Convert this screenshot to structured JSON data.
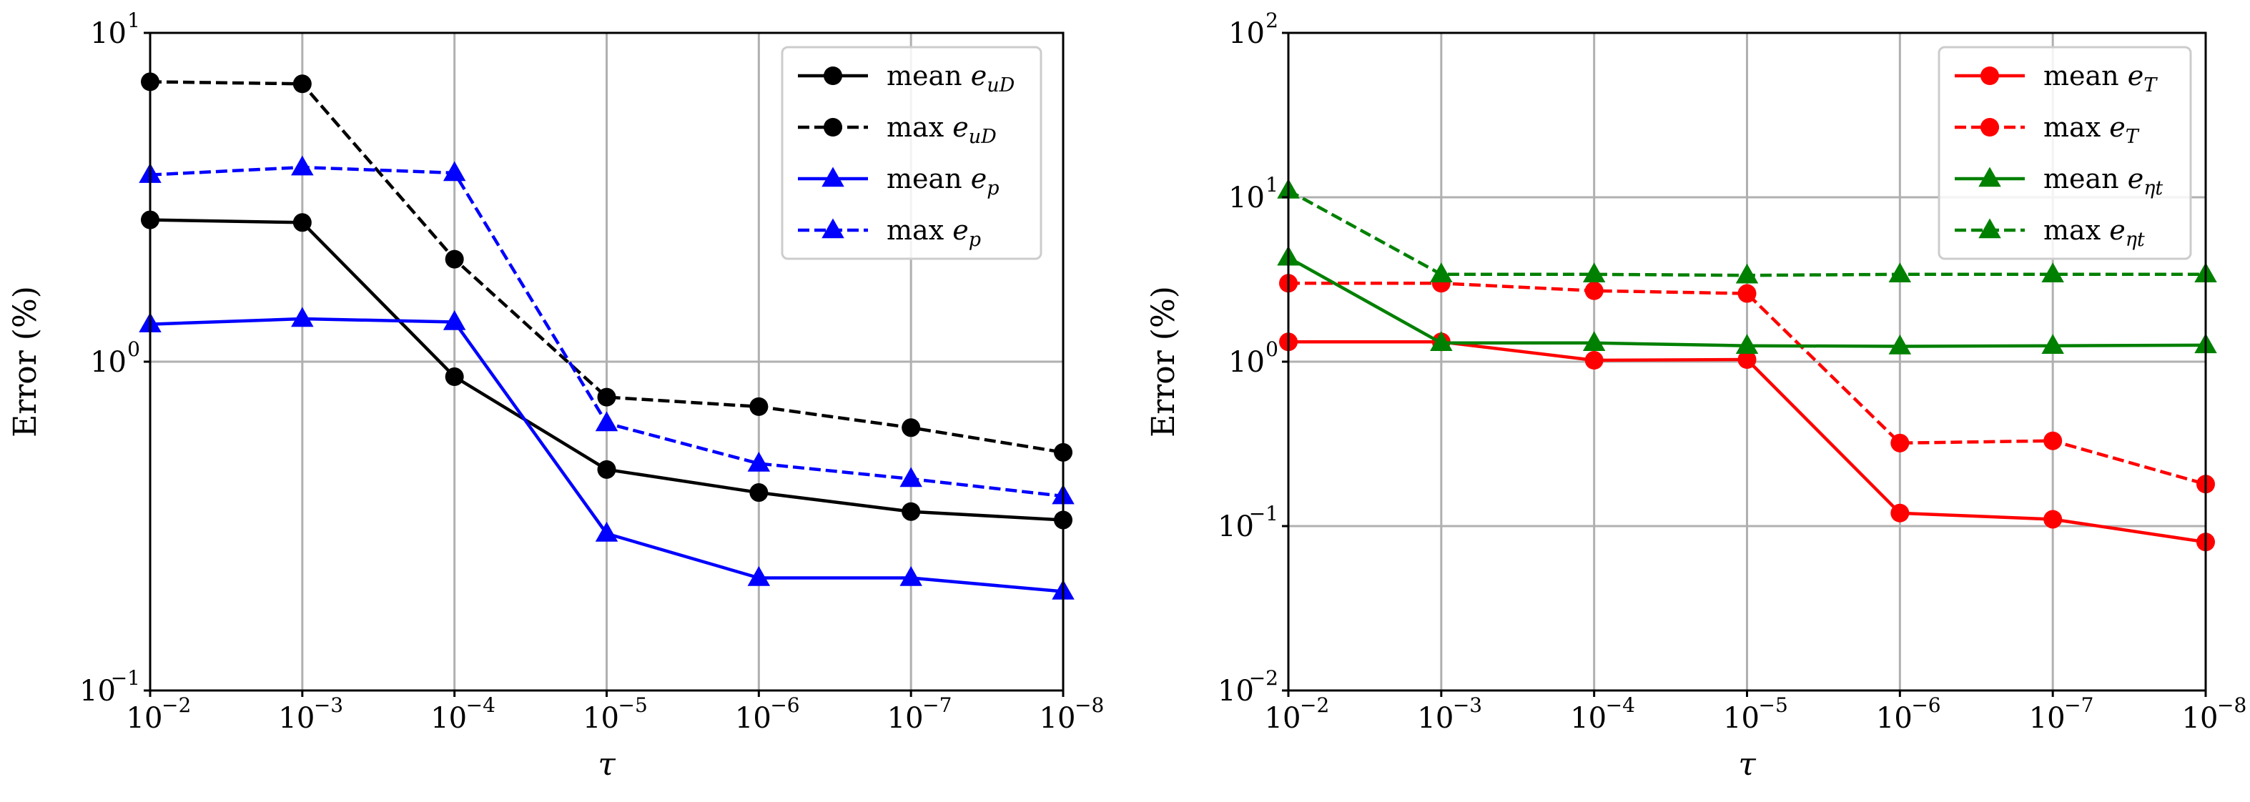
{
  "chart_data": [
    {
      "type": "line",
      "x": [
        0.01,
        0.001,
        0.0001,
        1e-05,
        1e-06,
        1e-07,
        1e-08
      ],
      "x_tick_labels": [
        "10",
        "10",
        "10",
        "10",
        "10",
        "10",
        "10"
      ],
      "x_tick_exponents": [
        "−2",
        "−3",
        "−4",
        "−5",
        "−6",
        "−7",
        "−8"
      ],
      "xlabel": "τ",
      "ylabel": "Error (%)",
      "ylim": [
        0.1,
        10
      ],
      "y_ticks": [
        0.1,
        1,
        10
      ],
      "y_tick_labels": [
        "10",
        "10",
        "10"
      ],
      "y_tick_exponents": [
        "−1",
        "0",
        "1"
      ],
      "xscale": "log",
      "yscale": "log",
      "grid": true,
      "legend_position": "top-right",
      "series": [
        {
          "name": "mean e_uD",
          "label_main": "mean ",
          "label_var": "e",
          "label_sub": "uD",
          "color": "#000000",
          "dash": "solid",
          "marker": "circle",
          "values": [
            2.7,
            2.65,
            0.9,
            0.47,
            0.4,
            0.35,
            0.33
          ]
        },
        {
          "name": "max e_uD",
          "label_main": "max ",
          "label_var": "e",
          "label_sub": "uD",
          "color": "#000000",
          "dash": "dashed",
          "marker": "circle",
          "values": [
            7.1,
            7.0,
            2.05,
            0.78,
            0.73,
            0.63,
            0.53
          ]
        },
        {
          "name": "mean e_p",
          "label_main": "mean ",
          "label_var": "e",
          "label_sub": "p",
          "color": "#0000ff",
          "dash": "solid",
          "marker": "triangle",
          "values": [
            1.3,
            1.35,
            1.32,
            0.3,
            0.22,
            0.22,
            0.2
          ]
        },
        {
          "name": "max e_p",
          "label_main": "max ",
          "label_var": "e",
          "label_sub": "p",
          "color": "#0000ff",
          "dash": "dashed",
          "marker": "triangle",
          "values": [
            3.7,
            3.9,
            3.75,
            0.65,
            0.49,
            0.44,
            0.39
          ]
        }
      ]
    },
    {
      "type": "line",
      "x": [
        0.01,
        0.001,
        0.0001,
        1e-05,
        1e-06,
        1e-07,
        1e-08
      ],
      "x_tick_labels": [
        "10",
        "10",
        "10",
        "10",
        "10",
        "10",
        "10"
      ],
      "x_tick_exponents": [
        "−2",
        "−3",
        "−4",
        "−5",
        "−6",
        "−7",
        "−8"
      ],
      "xlabel": "τ",
      "ylabel": "Error (%)",
      "ylim": [
        0.01,
        100
      ],
      "y_ticks": [
        0.01,
        0.1,
        1,
        10,
        100
      ],
      "y_tick_labels": [
        "10",
        "10",
        "10",
        "10",
        "10"
      ],
      "y_tick_exponents": [
        "−2",
        "−1",
        "0",
        "1",
        "2"
      ],
      "xscale": "log",
      "yscale": "log",
      "grid": true,
      "legend_position": "top-right",
      "series": [
        {
          "name": "mean e_T",
          "label_main": "mean ",
          "label_var": "e",
          "label_sub": "T",
          "color": "#ff0000",
          "dash": "solid",
          "marker": "circle",
          "values": [
            1.32,
            1.32,
            1.02,
            1.03,
            0.12,
            0.11,
            0.08
          ]
        },
        {
          "name": "max e_T",
          "label_main": "max ",
          "label_var": "e",
          "label_sub": "T",
          "color": "#ff0000",
          "dash": "dashed",
          "marker": "circle",
          "values": [
            3.0,
            3.0,
            2.7,
            2.6,
            0.32,
            0.33,
            0.18
          ]
        },
        {
          "name": "mean e_ηt",
          "label_main": "mean ",
          "label_var": "e",
          "label_sub": "ηt",
          "color": "#008000",
          "dash": "solid",
          "marker": "triangle",
          "values": [
            4.3,
            1.3,
            1.3,
            1.25,
            1.24,
            1.25,
            1.26
          ]
        },
        {
          "name": "max e_ηt",
          "label_main": "max ",
          "label_var": "e",
          "label_sub": "ηt",
          "color": "#008000",
          "dash": "dashed",
          "marker": "triangle",
          "values": [
            11,
            3.4,
            3.4,
            3.35,
            3.4,
            3.4,
            3.4
          ]
        }
      ]
    }
  ]
}
